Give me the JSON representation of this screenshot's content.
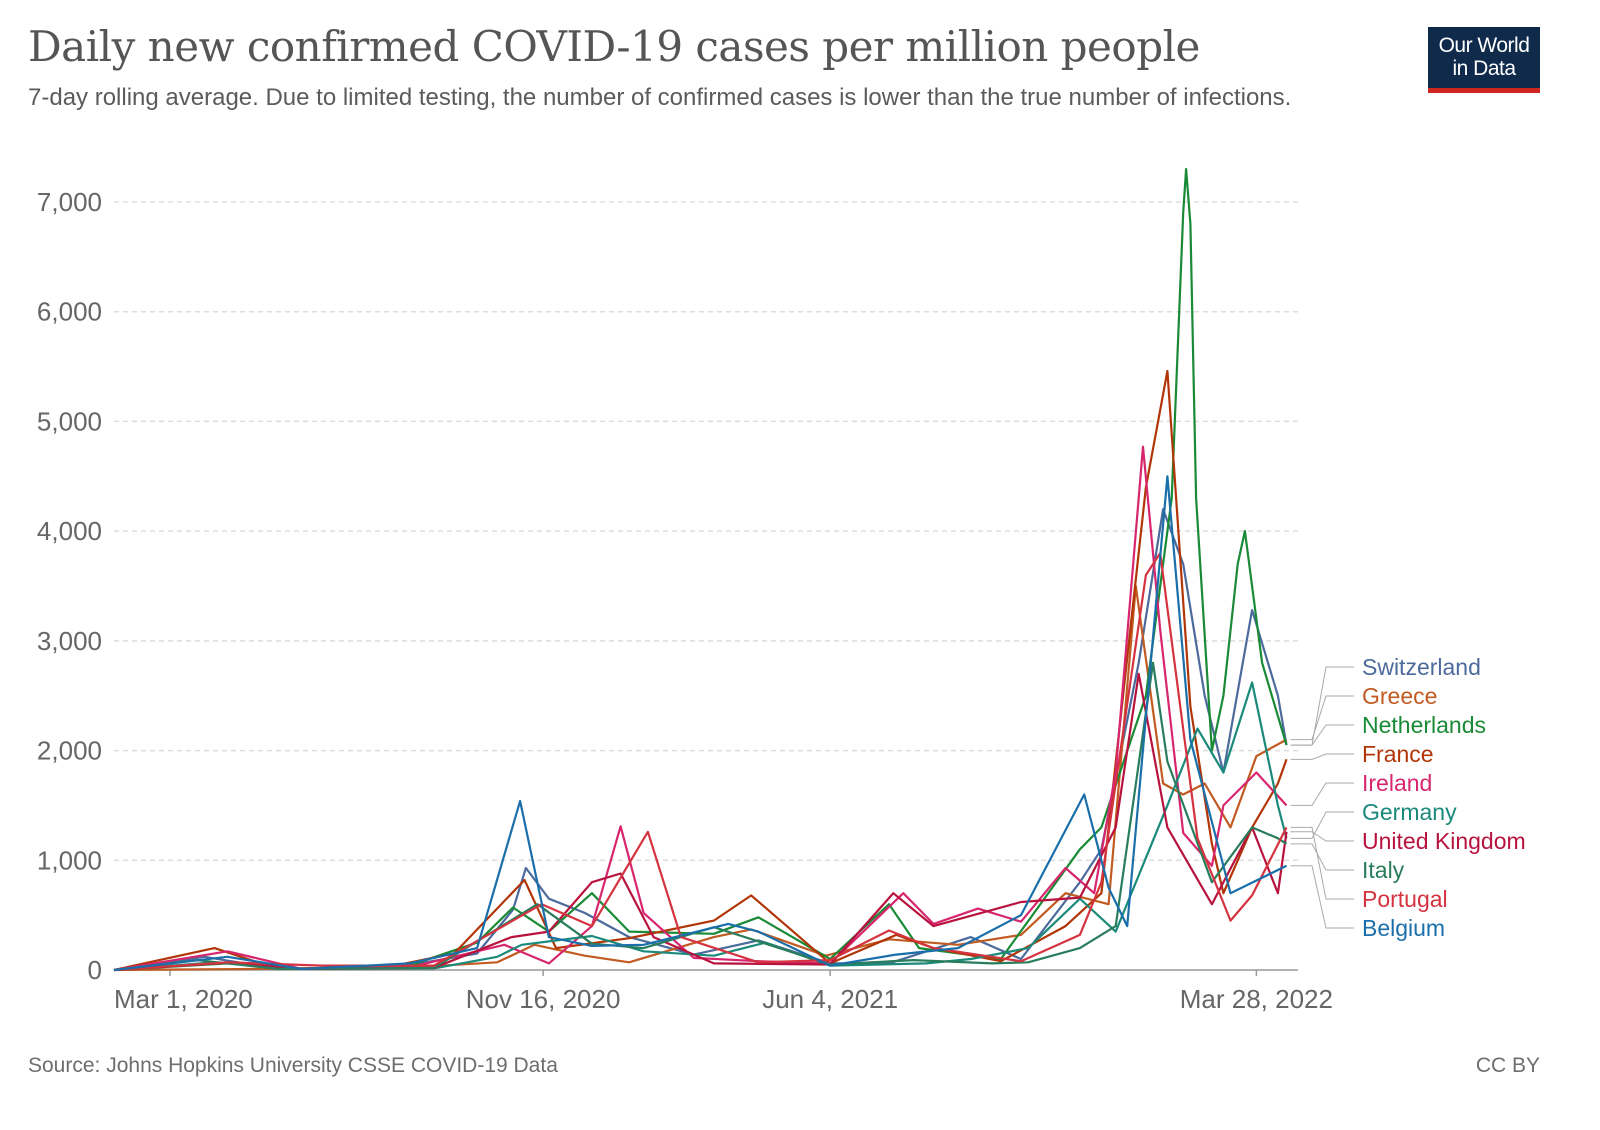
{
  "header": {
    "title": "Daily new confirmed COVID-19 cases per million people",
    "subtitle": "7-day rolling average. Due to limited testing, the number of confirmed cases is lower than the true number of infections.",
    "logo_line1": "Our World",
    "logo_line2": "in Data"
  },
  "footer": {
    "source": "Source: Johns Hopkins University CSSE COVID-19 Data",
    "license": "CC BY"
  },
  "chart_data": {
    "type": "line",
    "title": "Daily new confirmed COVID-19 cases per million people",
    "subtitle": "7-day rolling average. Due to limited testing, the number of confirmed cases is lower than the true number of infections.",
    "xlabel": "",
    "ylabel": "",
    "xlim": [
      "2020-01-22",
      "2022-04-26"
    ],
    "ylim": [
      0,
      7000
    ],
    "x_ticks": [
      {
        "date": "2020-03-01",
        "label": "Mar 1, 2020"
      },
      {
        "date": "2020-11-16",
        "label": "Nov 16, 2020"
      },
      {
        "date": "2021-06-04",
        "label": "Jun 4, 2021"
      },
      {
        "date": "2022-03-28",
        "label": "Mar 28, 2022"
      }
    ],
    "y_ticks": [
      {
        "value": 0,
        "label": "0"
      },
      {
        "value": 1000,
        "label": "1,000"
      },
      {
        "value": 2000,
        "label": "2,000"
      },
      {
        "value": 3000,
        "label": "3,000"
      },
      {
        "value": 4000,
        "label": "4,000"
      },
      {
        "value": 5000,
        "label": "5,000"
      },
      {
        "value": 6000,
        "label": "6,000"
      },
      {
        "value": 7000,
        "label": "7,000"
      }
    ],
    "grid": "horizontal-dashed",
    "legend": "right",
    "series": [
      {
        "name": "Switzerland",
        "color": "#4c6a9c",
        "points": [
          [
            "2020-01-22",
            0
          ],
          [
            "2020-03-25",
            120
          ],
          [
            "2020-05-15",
            10
          ],
          [
            "2020-08-01",
            15
          ],
          [
            "2020-10-01",
            150
          ],
          [
            "2020-10-26",
            550
          ],
          [
            "2020-11-04",
            930
          ],
          [
            "2020-11-20",
            650
          ],
          [
            "2020-12-15",
            520
          ],
          [
            "2021-01-15",
            300
          ],
          [
            "2021-03-01",
            140
          ],
          [
            "2021-04-15",
            270
          ],
          [
            "2021-06-04",
            60
          ],
          [
            "2021-07-15",
            60
          ],
          [
            "2021-09-10",
            300
          ],
          [
            "2021-10-15",
            100
          ],
          [
            "2021-11-25",
            800
          ],
          [
            "2021-12-10",
            1100
          ],
          [
            "2022-01-05",
            2800
          ],
          [
            "2022-01-22",
            4200
          ],
          [
            "2022-02-05",
            3700
          ],
          [
            "2022-02-20",
            2500
          ],
          [
            "2022-03-05",
            1800
          ],
          [
            "2022-03-25",
            3280
          ],
          [
            "2022-04-12",
            2500
          ],
          [
            "2022-04-18",
            2050
          ]
        ]
      },
      {
        "name": "Greece",
        "color": "#c15b22",
        "points": [
          [
            "2020-01-22",
            0
          ],
          [
            "2020-05-01",
            10
          ],
          [
            "2020-08-25",
            30
          ],
          [
            "2020-10-15",
            70
          ],
          [
            "2020-11-10",
            230
          ],
          [
            "2020-12-15",
            130
          ],
          [
            "2021-01-15",
            70
          ],
          [
            "2021-03-15",
            300
          ],
          [
            "2021-04-10",
            370
          ],
          [
            "2021-06-01",
            130
          ],
          [
            "2021-07-15",
            280
          ],
          [
            "2021-09-01",
            230
          ],
          [
            "2021-10-15",
            320
          ],
          [
            "2021-11-15",
            700
          ],
          [
            "2021-12-15",
            600
          ],
          [
            "2022-01-03",
            3500
          ],
          [
            "2022-01-22",
            1700
          ],
          [
            "2022-02-05",
            1600
          ],
          [
            "2022-02-20",
            1700
          ],
          [
            "2022-03-10",
            1300
          ],
          [
            "2022-03-28",
            1950
          ],
          [
            "2022-04-18",
            2100
          ]
        ]
      },
      {
        "name": "Netherlands",
        "color": "#198a35",
        "points": [
          [
            "2020-01-22",
            0
          ],
          [
            "2020-04-10",
            60
          ],
          [
            "2020-06-01",
            10
          ],
          [
            "2020-08-15",
            40
          ],
          [
            "2020-10-01",
            250
          ],
          [
            "2020-10-26",
            570
          ],
          [
            "2020-11-20",
            350
          ],
          [
            "2020-12-20",
            700
          ],
          [
            "2021-01-15",
            350
          ],
          [
            "2021-03-15",
            330
          ],
          [
            "2021-04-15",
            480
          ],
          [
            "2021-06-04",
            100
          ],
          [
            "2021-07-15",
            600
          ],
          [
            "2021-08-05",
            200
          ],
          [
            "2021-10-01",
            100
          ],
          [
            "2021-11-25",
            1100
          ],
          [
            "2021-12-10",
            1300
          ],
          [
            "2022-01-10",
            2500
          ],
          [
            "2022-01-28",
            4300
          ],
          [
            "2022-02-05",
            6900
          ],
          [
            "2022-02-07",
            7300
          ],
          [
            "2022-02-10",
            6800
          ],
          [
            "2022-02-14",
            4300
          ],
          [
            "2022-02-25",
            2000
          ],
          [
            "2022-03-05",
            2500
          ],
          [
            "2022-03-15",
            3700
          ],
          [
            "2022-03-20",
            4000
          ],
          [
            "2022-04-01",
            2800
          ],
          [
            "2022-04-18",
            2050
          ]
        ]
      },
      {
        "name": "France",
        "color": "#b13507",
        "points": [
          [
            "2020-01-22",
            0
          ],
          [
            "2020-04-01",
            200
          ],
          [
            "2020-05-15",
            10
          ],
          [
            "2020-08-01",
            30
          ],
          [
            "2020-09-15",
            150
          ],
          [
            "2020-11-03",
            820
          ],
          [
            "2020-11-25",
            200
          ],
          [
            "2021-01-15",
            290
          ],
          [
            "2021-03-15",
            450
          ],
          [
            "2021-04-10",
            680
          ],
          [
            "2021-06-04",
            60
          ],
          [
            "2021-07-20",
            320
          ],
          [
            "2021-08-15",
            200
          ],
          [
            "2021-10-01",
            80
          ],
          [
            "2021-11-15",
            400
          ],
          [
            "2021-12-10",
            700
          ],
          [
            "2022-01-10",
            4400
          ],
          [
            "2022-01-25",
            5460
          ],
          [
            "2022-02-10",
            2400
          ],
          [
            "2022-02-25",
            1150
          ],
          [
            "2022-03-05",
            700
          ],
          [
            "2022-03-25",
            1300
          ],
          [
            "2022-04-12",
            1700
          ],
          [
            "2022-04-18",
            1920
          ]
        ]
      },
      {
        "name": "Ireland",
        "color": "#d7266e",
        "points": [
          [
            "2020-01-22",
            0
          ],
          [
            "2020-04-10",
            170
          ],
          [
            "2020-06-01",
            10
          ],
          [
            "2020-08-20",
            40
          ],
          [
            "2020-10-20",
            230
          ],
          [
            "2020-11-20",
            60
          ],
          [
            "2020-12-20",
            400
          ],
          [
            "2021-01-09",
            1310
          ],
          [
            "2021-01-25",
            520
          ],
          [
            "2021-03-01",
            110
          ],
          [
            "2021-04-15",
            80
          ],
          [
            "2021-06-04",
            60
          ],
          [
            "2021-07-25",
            700
          ],
          [
            "2021-08-15",
            420
          ],
          [
            "2021-09-15",
            560
          ],
          [
            "2021-10-15",
            440
          ],
          [
            "2021-11-15",
            930
          ],
          [
            "2021-12-05",
            700
          ],
          [
            "2021-12-20",
            1800
          ],
          [
            "2022-01-08",
            4770
          ],
          [
            "2022-01-20",
            3100
          ],
          [
            "2022-02-05",
            1250
          ],
          [
            "2022-02-25",
            950
          ],
          [
            "2022-03-05",
            1500
          ],
          [
            "2022-03-28",
            1800
          ],
          [
            "2022-04-18",
            1500
          ]
        ]
      },
      {
        "name": "Germany",
        "color": "#1b8a7a",
        "points": [
          [
            "2020-01-22",
            0
          ],
          [
            "2020-04-01",
            70
          ],
          [
            "2020-06-01",
            10
          ],
          [
            "2020-09-01",
            15
          ],
          [
            "2020-10-15",
            120
          ],
          [
            "2020-11-01",
            230
          ],
          [
            "2020-12-20",
            310
          ],
          [
            "2021-01-25",
            170
          ],
          [
            "2021-03-15",
            130
          ],
          [
            "2021-04-20",
            250
          ],
          [
            "2021-06-04",
            40
          ],
          [
            "2021-08-10",
            60
          ],
          [
            "2021-09-10",
            100
          ],
          [
            "2021-10-20",
            200
          ],
          [
            "2021-11-25",
            650
          ],
          [
            "2021-12-20",
            350
          ],
          [
            "2022-01-25",
            1500
          ],
          [
            "2022-02-15",
            2200
          ],
          [
            "2022-03-05",
            1800
          ],
          [
            "2022-03-25",
            2620
          ],
          [
            "2022-04-12",
            1500
          ],
          [
            "2022-04-18",
            1200
          ]
        ]
      },
      {
        "name": "United Kingdom",
        "color": "#b8133e",
        "points": [
          [
            "2020-01-22",
            0
          ],
          [
            "2020-04-15",
            70
          ],
          [
            "2020-06-01",
            10
          ],
          [
            "2020-09-01",
            20
          ],
          [
            "2020-10-25",
            300
          ],
          [
            "2020-11-20",
            350
          ],
          [
            "2020-12-20",
            800
          ],
          [
            "2021-01-09",
            880
          ],
          [
            "2021-02-01",
            300
          ],
          [
            "2021-03-15",
            60
          ],
          [
            "2021-06-04",
            50
          ],
          [
            "2021-07-18",
            700
          ],
          [
            "2021-08-15",
            400
          ],
          [
            "2021-10-15",
            620
          ],
          [
            "2021-11-25",
            660
          ],
          [
            "2021-12-20",
            1300
          ],
          [
            "2022-01-05",
            2700
          ],
          [
            "2022-01-25",
            1300
          ],
          [
            "2022-02-25",
            600
          ],
          [
            "2022-03-25",
            1300
          ],
          [
            "2022-04-12",
            700
          ],
          [
            "2022-04-18",
            1260
          ]
        ]
      },
      {
        "name": "Italy",
        "color": "#2a7d5c",
        "points": [
          [
            "2020-01-22",
            0
          ],
          [
            "2020-03-20",
            90
          ],
          [
            "2020-05-15",
            10
          ],
          [
            "2020-09-01",
            20
          ],
          [
            "2020-11-12",
            600
          ],
          [
            "2020-12-20",
            240
          ],
          [
            "2021-01-25",
            200
          ],
          [
            "2021-03-15",
            390
          ],
          [
            "2021-04-20",
            240
          ],
          [
            "2021-06-04",
            50
          ],
          [
            "2021-08-01",
            90
          ],
          [
            "2021-09-25",
            60
          ],
          [
            "2021-10-20",
            70
          ],
          [
            "2021-11-25",
            200
          ],
          [
            "2021-12-20",
            400
          ],
          [
            "2022-01-15",
            2800
          ],
          [
            "2022-01-25",
            1900
          ],
          [
            "2022-02-25",
            800
          ],
          [
            "2022-03-25",
            1300
          ],
          [
            "2022-04-12",
            1200
          ],
          [
            "2022-04-18",
            1150
          ]
        ]
      },
      {
        "name": "Portugal",
        "color": "#d4333f",
        "points": [
          [
            "2020-01-22",
            0
          ],
          [
            "2020-04-10",
            70
          ],
          [
            "2020-06-15",
            40
          ],
          [
            "2020-09-01",
            40
          ],
          [
            "2020-11-15",
            600
          ],
          [
            "2020-12-20",
            400
          ],
          [
            "2021-01-28",
            1260
          ],
          [
            "2021-02-20",
            300
          ],
          [
            "2021-04-15",
            70
          ],
          [
            "2021-06-04",
            90
          ],
          [
            "2021-07-15",
            360
          ],
          [
            "2021-08-15",
            200
          ],
          [
            "2021-10-15",
            80
          ],
          [
            "2021-11-25",
            320
          ],
          [
            "2021-12-10",
            800
          ],
          [
            "2022-01-10",
            3600
          ],
          [
            "2022-01-20",
            3800
          ],
          [
            "2022-02-15",
            1200
          ],
          [
            "2022-03-10",
            450
          ],
          [
            "2022-03-25",
            680
          ],
          [
            "2022-04-18",
            1300
          ]
        ]
      },
      {
        "name": "Belgium",
        "color": "#1a6faa",
        "points": [
          [
            "2020-01-22",
            0
          ],
          [
            "2020-04-10",
            120
          ],
          [
            "2020-06-01",
            10
          ],
          [
            "2020-08-15",
            60
          ],
          [
            "2020-10-01",
            200
          ],
          [
            "2020-10-31",
            1540
          ],
          [
            "2020-11-20",
            300
          ],
          [
            "2020-12-20",
            220
          ],
          [
            "2021-01-25",
            230
          ],
          [
            "2021-03-25",
            420
          ],
          [
            "2021-04-15",
            350
          ],
          [
            "2021-06-04",
            40
          ],
          [
            "2021-07-20",
            140
          ],
          [
            "2021-09-01",
            200
          ],
          [
            "2021-10-15",
            500
          ],
          [
            "2021-11-28",
            1600
          ],
          [
            "2021-12-15",
            750
          ],
          [
            "2021-12-28",
            400
          ],
          [
            "2022-01-25",
            4500
          ],
          [
            "2022-02-10",
            2100
          ],
          [
            "2022-03-10",
            700
          ],
          [
            "2022-04-18",
            950
          ]
        ]
      }
    ]
  }
}
